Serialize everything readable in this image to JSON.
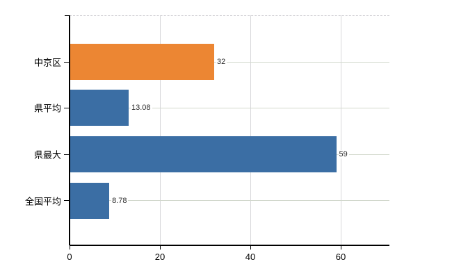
{
  "chart_data": {
    "type": "bar",
    "orientation": "horizontal",
    "title": "",
    "categories": [
      "中京区",
      "県平均",
      "県最大",
      "全国平均"
    ],
    "values": [
      32,
      13.08,
      59,
      8.78
    ],
    "value_labels": [
      "32",
      "13.08",
      "59",
      "8.78"
    ],
    "bar_colors": [
      "#EC8633",
      "#3B6EA4",
      "#3B6EA4",
      "#3B6EA4"
    ],
    "xlabel": "",
    "ylabel": "",
    "xlim": [
      0,
      70.8
    ],
    "x_ticks": [
      0,
      20,
      40,
      60
    ],
    "x_tick_labels": [
      "0",
      "20",
      "40",
      "60"
    ],
    "grid": "on",
    "legend": "none",
    "colors": {
      "accent_orange": "#EC8633",
      "accent_blue": "#3B6EA4",
      "axis": "#000000",
      "gridline_horizontal": "#d2d8cc",
      "gridline_vertical": "#d7d7da",
      "top_border_dashed": "#cfcdd2",
      "value_text": "#2b2b2b",
      "label_text": "#000000",
      "background": "#ffffff"
    }
  }
}
